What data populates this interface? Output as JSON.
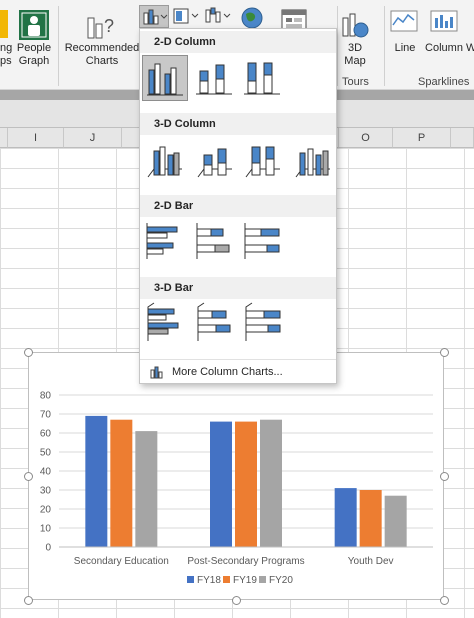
{
  "ribbon": {
    "people_graph_label": "People Graph",
    "apps_label_partial": "ng ps",
    "recommended_charts_label": "Recommended Charts",
    "map3d_label": "3D Map",
    "tours_label": "Tours",
    "line_label": "Line",
    "column_label": "Column",
    "w_label_partial": "W",
    "sparklines_label": "Sparklines"
  },
  "columns": [
    {
      "label": "I"
    },
    {
      "label": "J"
    },
    {
      "label": "O"
    },
    {
      "label": "P"
    }
  ],
  "menu": {
    "sections": [
      {
        "title": "2-D Column"
      },
      {
        "title": "3-D Column"
      },
      {
        "title": "2-D Bar"
      },
      {
        "title": "3-D Bar"
      }
    ],
    "more_label": "More Column Charts..."
  },
  "chart_data": {
    "type": "bar",
    "categories": [
      "Secondary Education",
      "Post-Secondary Programs",
      "Youth Dev"
    ],
    "series": [
      {
        "name": "FY18",
        "color": "#4472c4",
        "values": [
          69,
          66,
          31
        ]
      },
      {
        "name": "FY19",
        "color": "#ed7d31",
        "values": [
          67,
          66,
          30
        ]
      },
      {
        "name": "FY20",
        "color": "#a5a5a5",
        "values": [
          61,
          67,
          27
        ]
      }
    ],
    "yticks": [
      "0",
      "10",
      "20",
      "30",
      "40",
      "50",
      "60",
      "70",
      "80"
    ],
    "ylim": [
      0,
      80
    ],
    "grid": true,
    "legend_position": "bottom",
    "title": "",
    "xlabel": "",
    "ylabel": ""
  },
  "icons": {
    "people_graph": "people-graph-icon",
    "recommended": "recommended-charts-icon",
    "column_dropdown": "column-chart-icon",
    "map": "3d-map-icon"
  }
}
